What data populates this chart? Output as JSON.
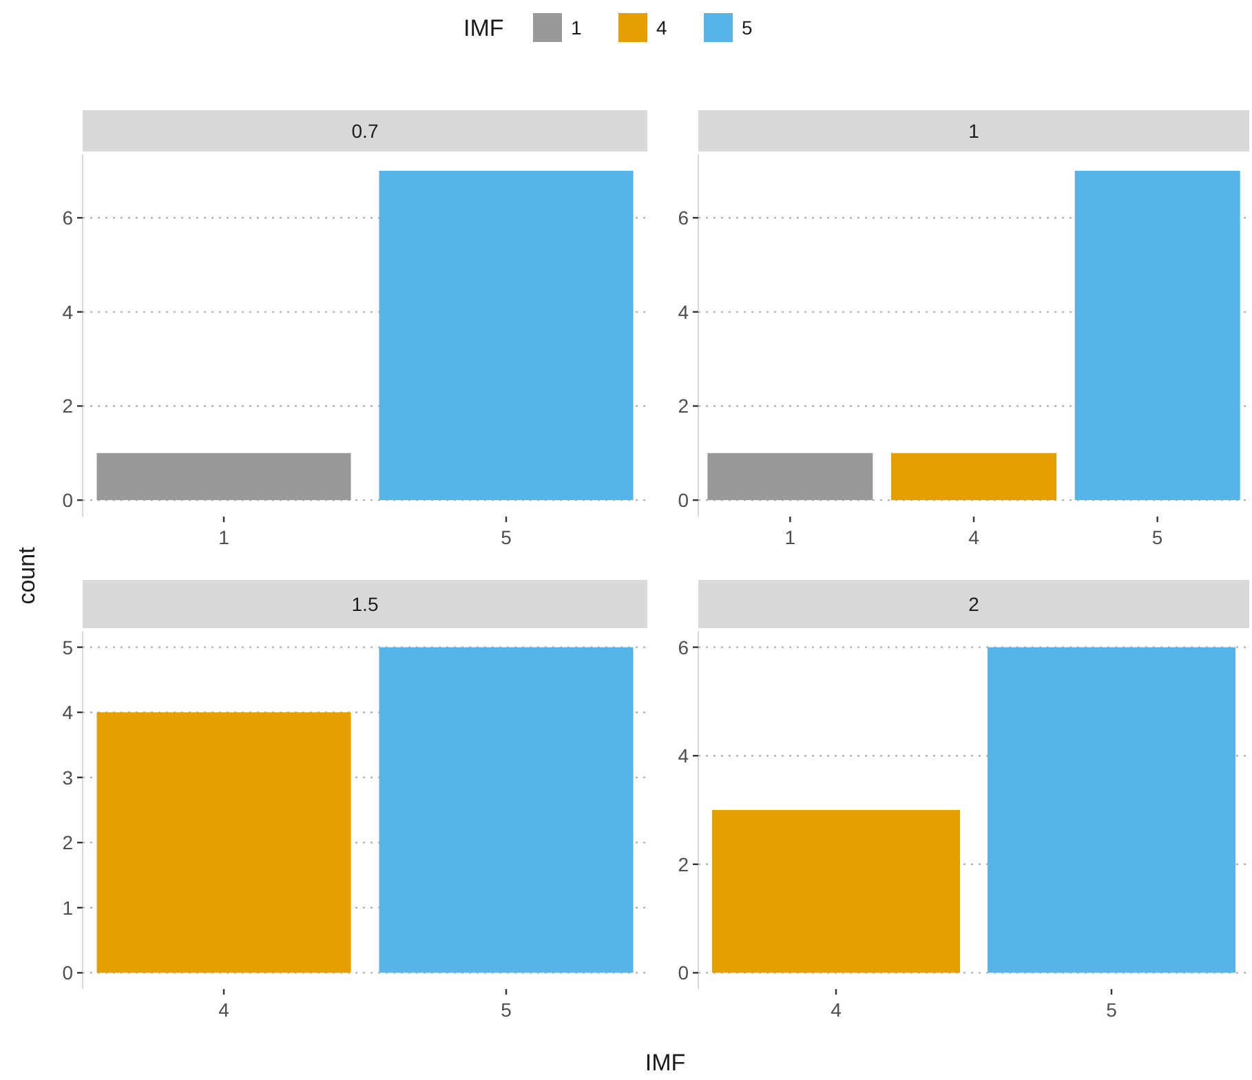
{
  "chart_data": [
    {
      "type": "bar",
      "title": "0.7",
      "categories": [
        "1",
        "5"
      ],
      "legend": "top",
      "legend_title": "IMF",
      "xlabel": "IMF",
      "ylabel": "count",
      "grid": "y",
      "ylim": [
        -0.35,
        7.35
      ],
      "yticks": [
        0,
        2,
        4,
        6
      ],
      "series": [
        {
          "name": "1",
          "color": "#999999",
          "values": [
            1,
            null
          ]
        },
        {
          "name": "4",
          "color": "#e69f00",
          "values": [
            null,
            null
          ]
        },
        {
          "name": "5",
          "color": "#56b4e9",
          "values": [
            null,
            7
          ]
        }
      ]
    },
    {
      "type": "bar",
      "title": "1",
      "categories": [
        "1",
        "4",
        "5"
      ],
      "grid": "y",
      "ylim": [
        -0.35,
        7.35
      ],
      "yticks": [
        0,
        2,
        4,
        6
      ],
      "series": [
        {
          "color": "#999999",
          "values": [
            1,
            null,
            null
          ]
        },
        {
          "color": "#e69f00",
          "values": [
            null,
            1,
            null
          ]
        },
        {
          "color": "#56b4e9",
          "values": [
            null,
            null,
            7
          ]
        }
      ]
    },
    {
      "type": "bar",
      "title": "1.5",
      "categories": [
        "4",
        "5"
      ],
      "grid": "y",
      "ylim": [
        -0.25,
        5.25
      ],
      "yticks": [
        0,
        1,
        2,
        3,
        4,
        5
      ],
      "series": [
        {
          "color": "#e69f00",
          "values": [
            4,
            null
          ]
        },
        {
          "color": "#56b4e9",
          "values": [
            null,
            5
          ]
        }
      ]
    },
    {
      "type": "bar",
      "title": "2",
      "categories": [
        "4",
        "5"
      ],
      "grid": "y",
      "ylim": [
        -0.3,
        6.3
      ],
      "yticks": [
        0,
        2,
        4,
        6
      ],
      "series": [
        {
          "color": "#e69f00",
          "values": [
            3,
            null
          ]
        },
        {
          "color": "#56b4e9",
          "values": [
            null,
            6
          ]
        }
      ]
    }
  ]
}
